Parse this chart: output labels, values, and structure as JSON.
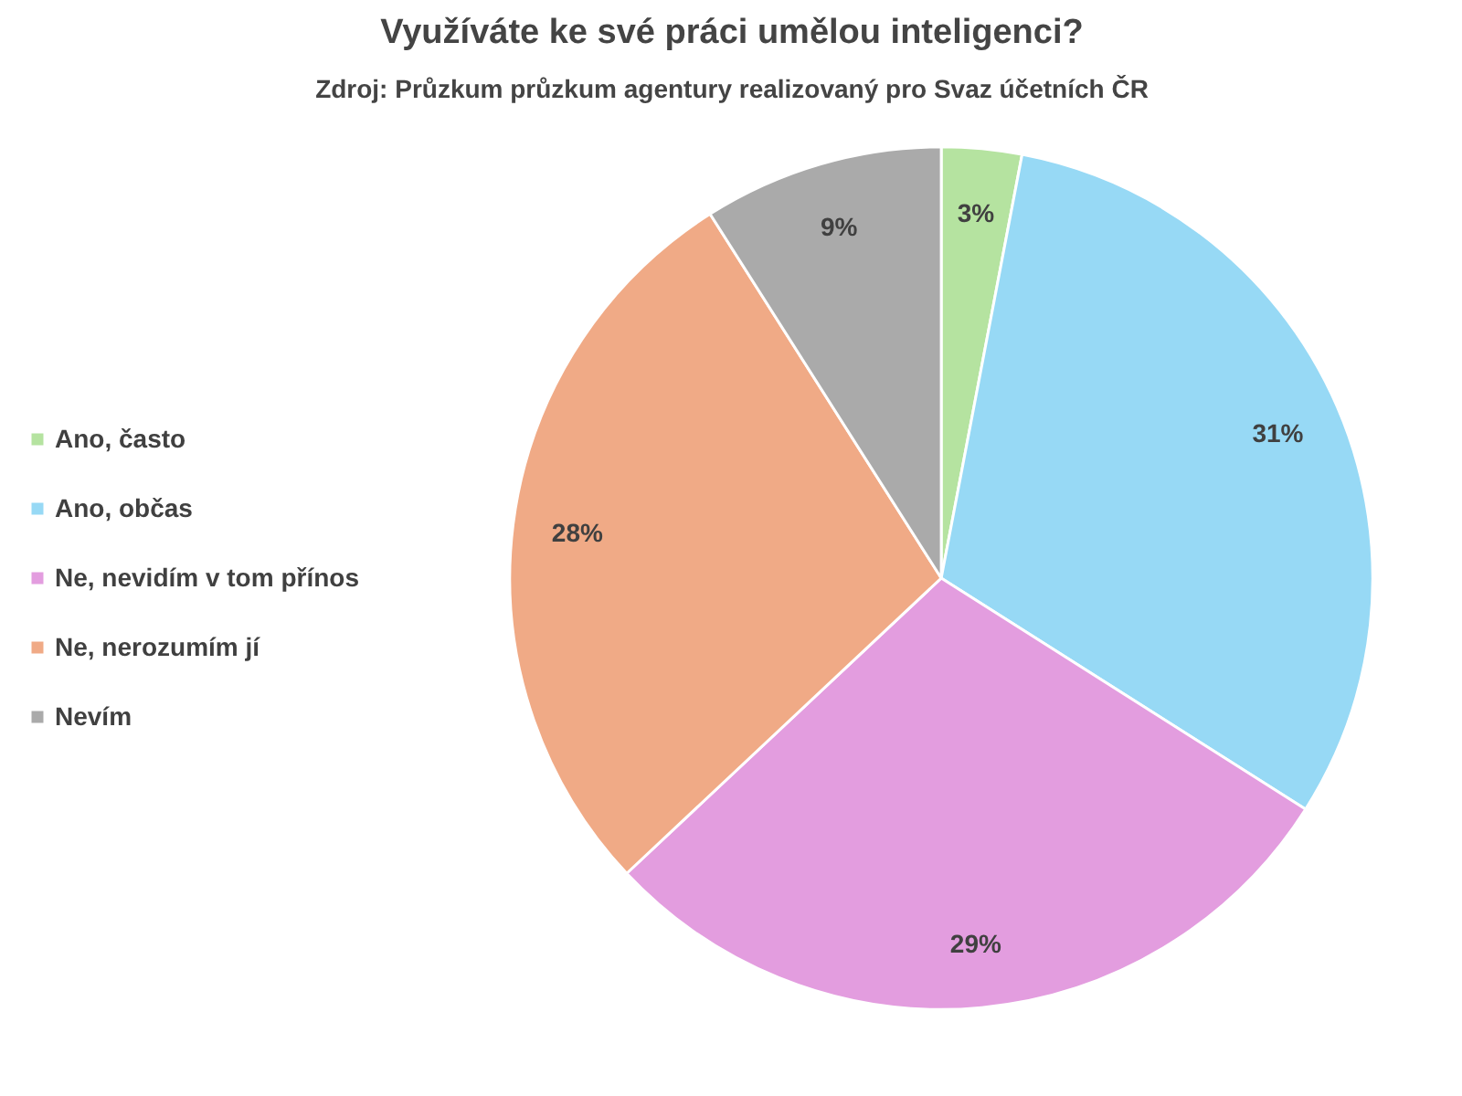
{
  "chart_data": {
    "type": "pie",
    "title": "Využíváte ke své práci umělou inteligenci?",
    "subtitle": "Zdroj: Průzkum průzkum agentury realizovaný pro Svaz účetních ČR",
    "categories": [
      "Ano, často",
      "Ano, občas",
      "Ne, nevidím v tom přínos",
      "Ne, nerozumím jí",
      "Nevím"
    ],
    "values": [
      3,
      31,
      29,
      28,
      9
    ],
    "value_labels": [
      "3%",
      "31%",
      "29%",
      "28%",
      "9%"
    ],
    "colors": [
      "#b5e3a0",
      "#97d9f5",
      "#e39ddf",
      "#f0aa86",
      "#aaaaaa"
    ],
    "legend": "left"
  }
}
